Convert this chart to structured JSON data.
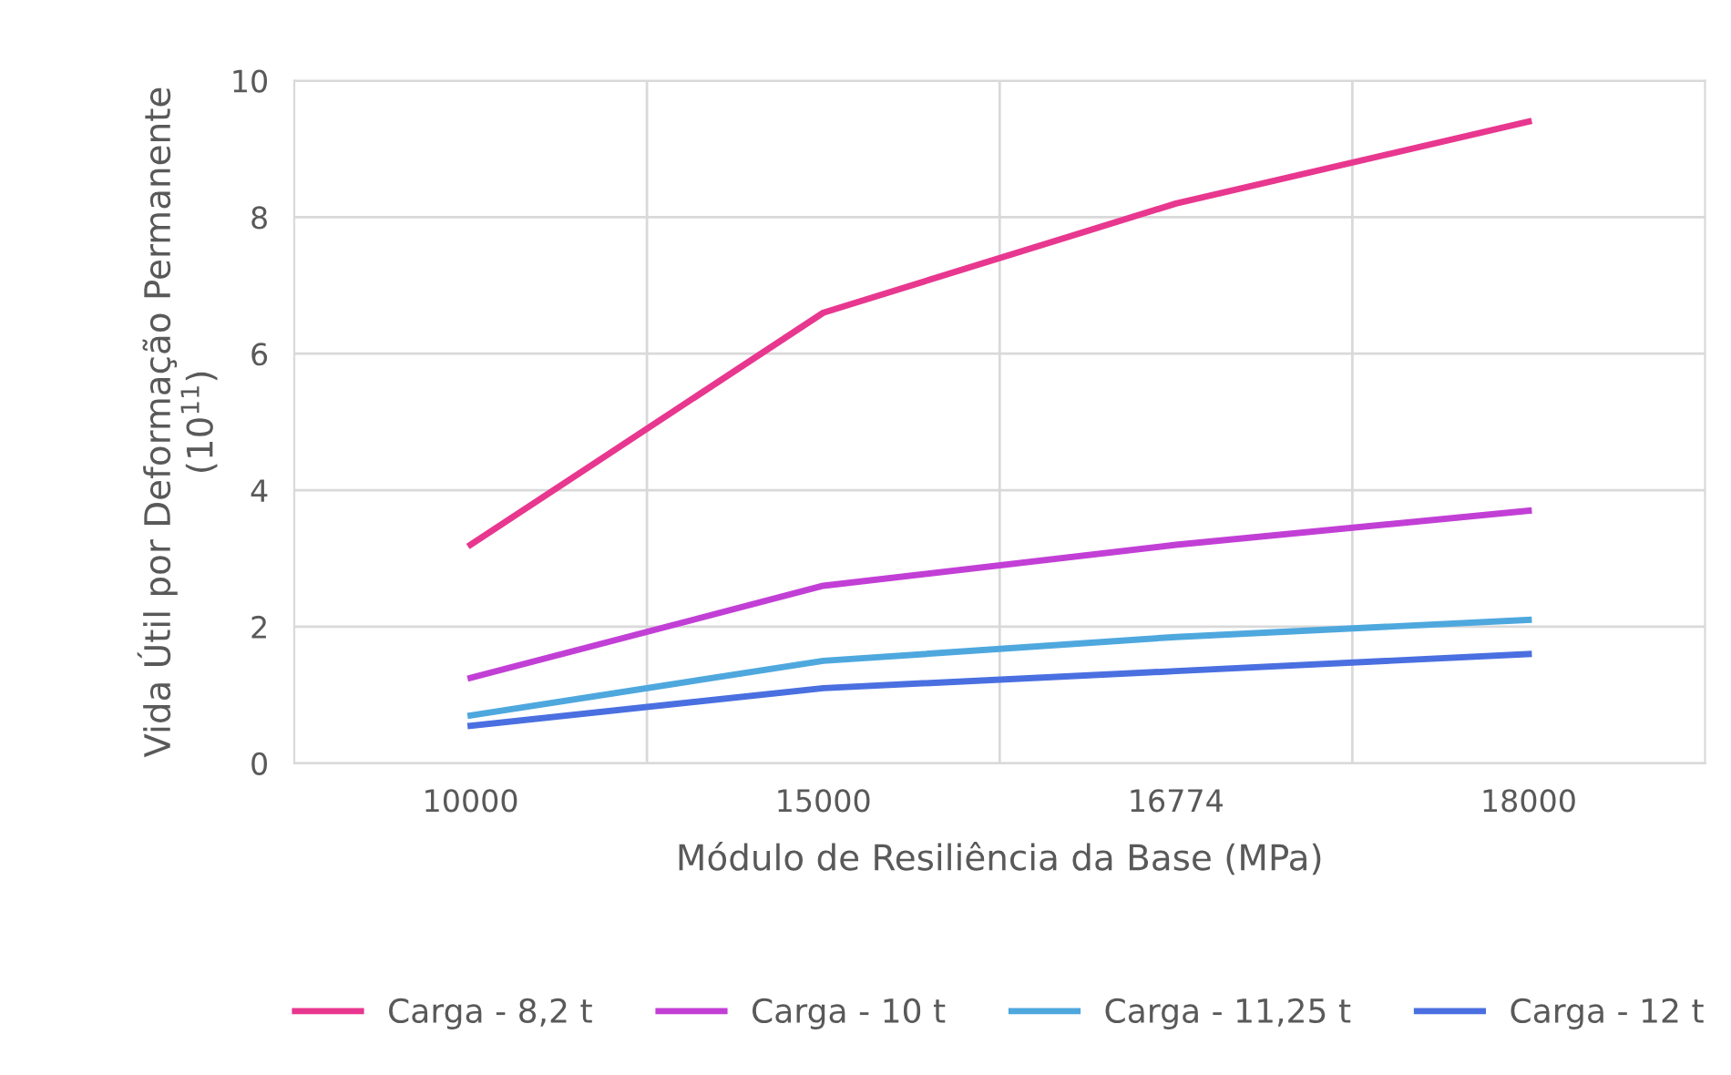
{
  "chart_data": {
    "type": "line",
    "xlabel": "Módulo de Resiliência da Base (MPa)",
    "ylabel": "Vida Útil por Deformação Permanente\n(10$^{11}$)",
    "categories": [
      "10000",
      "15000",
      "16774",
      "18000"
    ],
    "series": [
      {
        "name": "Carga - 8,2 t",
        "color": "#e8378f",
        "values": [
          3.2,
          6.6,
          8.2,
          9.4
        ]
      },
      {
        "name": "Carga - 10 t",
        "color": "#c23fd6",
        "values": [
          1.25,
          2.6,
          3.2,
          3.7
        ]
      },
      {
        "name": "Carga - 11,25 t",
        "color": "#4ea8de",
        "values": [
          0.7,
          1.5,
          1.85,
          2.1
        ]
      },
      {
        "name": "Carga - 12 t",
        "color": "#4a6fe0",
        "values": [
          0.55,
          1.1,
          1.35,
          1.6
        ]
      }
    ],
    "ylim": [
      0,
      10
    ],
    "yticks": [
      0,
      2,
      4,
      6,
      8,
      10
    ],
    "grid": true,
    "legend": "bottom",
    "marker": "none",
    "line_style": "solid"
  }
}
